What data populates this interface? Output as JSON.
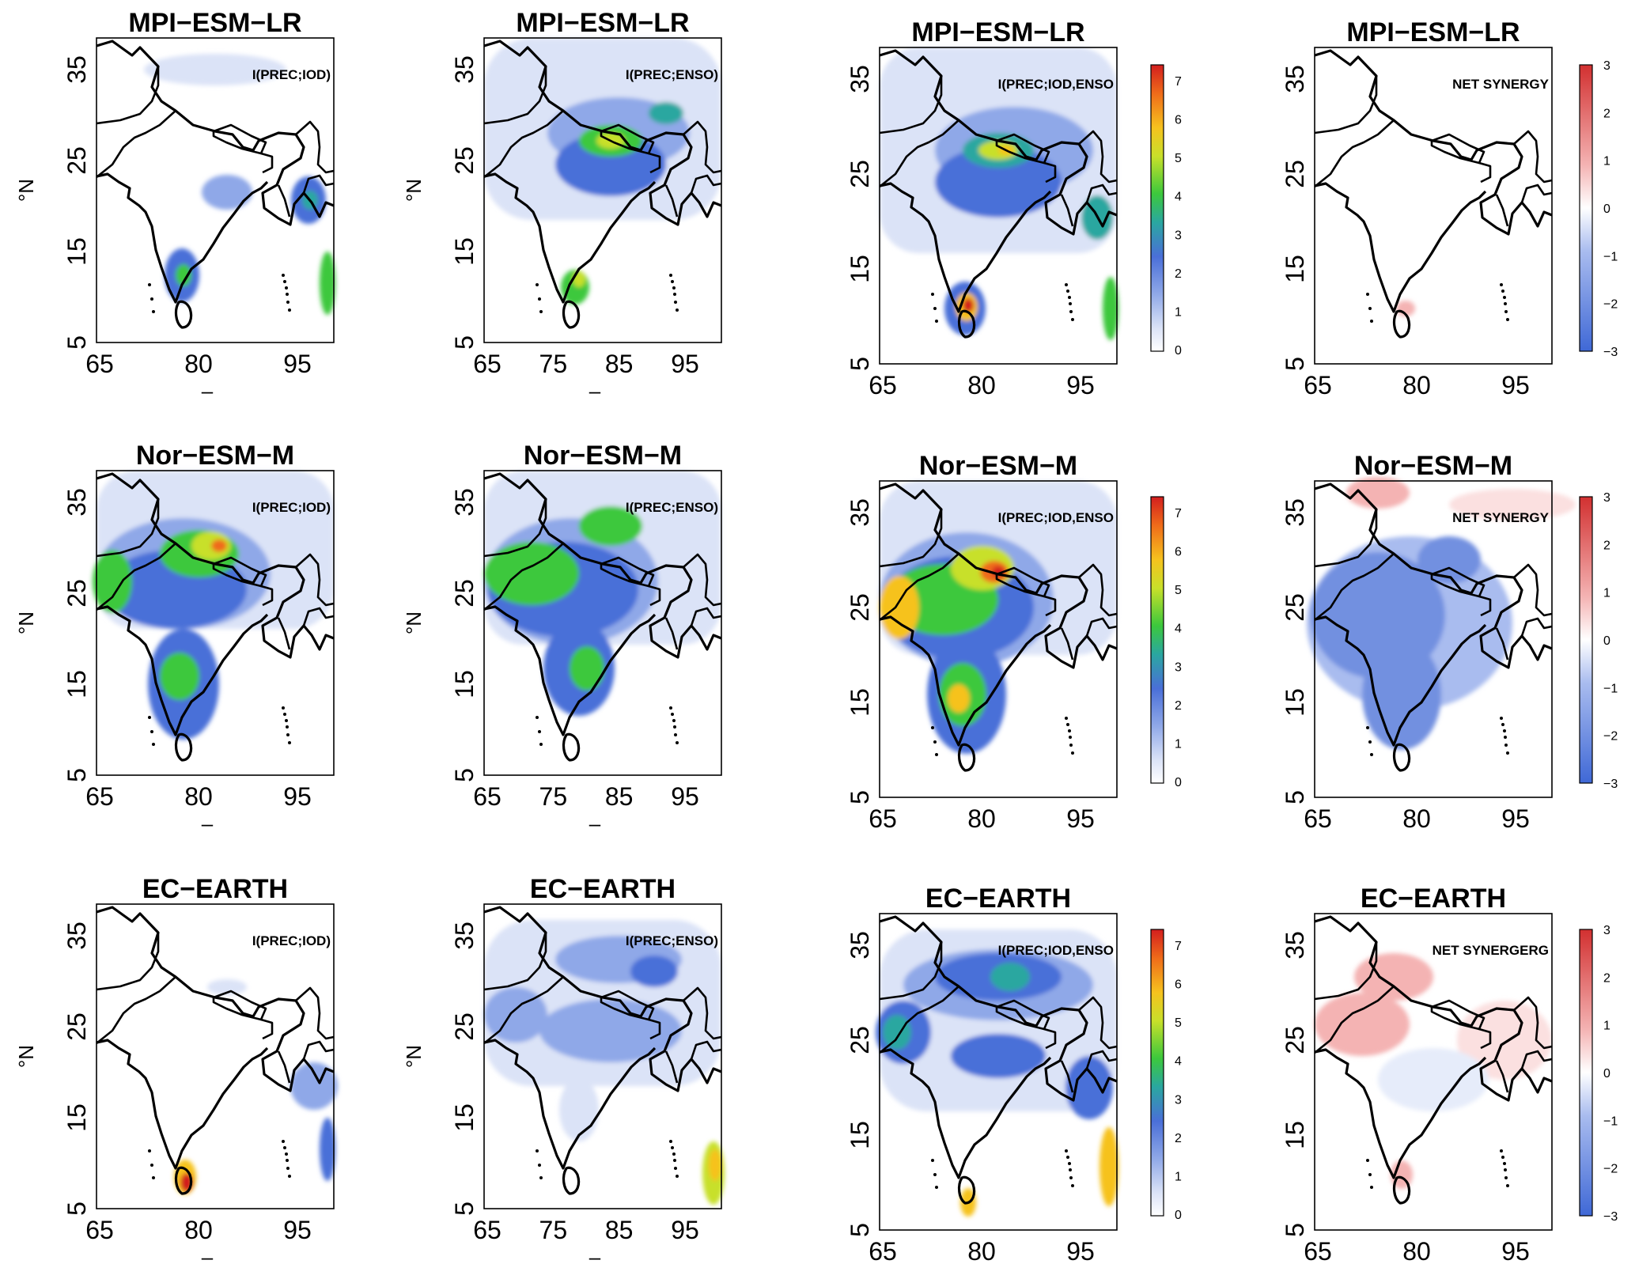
{
  "figure": {
    "panels": [
      {
        "row": 0,
        "col": 0,
        "title": "MPI−ESM−LR",
        "label": "I(PREC;IOD)",
        "xticks": [
          "65",
          "80",
          "95"
        ],
        "yticks": [
          "35",
          "25",
          "15",
          "5"
        ],
        "ylabel": "°N",
        "xlabel": "–"
      },
      {
        "row": 0,
        "col": 1,
        "title": "MPI−ESM−LR",
        "label": "I(PREC;ENSO)",
        "xticks": [
          "65",
          "75",
          "85",
          "95"
        ],
        "yticks": [
          "35",
          "25",
          "15",
          "5"
        ],
        "ylabel": "°N",
        "xlabel": "–"
      },
      {
        "row": 0,
        "col": 2,
        "title": "MPI−ESM−LR",
        "label": "I(PREC;IOD,ENSO",
        "xticks": [
          "65",
          "80",
          "95"
        ],
        "yticks": [
          "35",
          "25",
          "15",
          "5"
        ],
        "ylabel": "",
        "xlabel": ""
      },
      {
        "row": 0,
        "col": 3,
        "title": "MPI−ESM−LR",
        "label": "NET SYNERGY",
        "xticks": [
          "65",
          "80",
          "95"
        ],
        "yticks": [
          "35",
          "25",
          "15",
          "5"
        ],
        "ylabel": "",
        "xlabel": ""
      },
      {
        "row": 1,
        "col": 0,
        "title": "Nor−ESM−M",
        "label": "I(PREC;IOD)",
        "xticks": [
          "65",
          "80",
          "95"
        ],
        "yticks": [
          "35",
          "25",
          "15",
          "5"
        ],
        "ylabel": "°N",
        "xlabel": "–"
      },
      {
        "row": 1,
        "col": 1,
        "title": "Nor−ESM−M",
        "label": "I(PREC;ENSO)",
        "xticks": [
          "65",
          "75",
          "85",
          "95"
        ],
        "yticks": [
          "35",
          "25",
          "15",
          "5"
        ],
        "ylabel": "°N",
        "xlabel": "–"
      },
      {
        "row": 1,
        "col": 2,
        "title": "Nor−ESM−M",
        "label": "I(PREC;IOD,ENSO",
        "xticks": [
          "65",
          "80",
          "95"
        ],
        "yticks": [
          "35",
          "25",
          "15",
          "5"
        ],
        "ylabel": "",
        "xlabel": ""
      },
      {
        "row": 1,
        "col": 3,
        "title": "Nor−ESM−M",
        "label": "NET SYNERGY",
        "xticks": [
          "65",
          "80",
          "95"
        ],
        "yticks": [
          "35",
          "25",
          "15",
          "5"
        ],
        "ylabel": "",
        "xlabel": ""
      },
      {
        "row": 2,
        "col": 0,
        "title": "EC−EARTH",
        "label": "I(PREC;IOD)",
        "xticks": [
          "65",
          "80",
          "95"
        ],
        "yticks": [
          "35",
          "25",
          "15",
          "5"
        ],
        "ylabel": "°N",
        "xlabel": "–"
      },
      {
        "row": 2,
        "col": 1,
        "title": "EC−EARTH",
        "label": "I(PREC;ENSO)",
        "xticks": [
          "65",
          "75",
          "85",
          "95"
        ],
        "yticks": [
          "35",
          "25",
          "15",
          "5"
        ],
        "ylabel": "°N",
        "xlabel": "–"
      },
      {
        "row": 2,
        "col": 2,
        "title": "EC−EARTH",
        "label": "I(PREC;IOD,ENSO",
        "xticks": [
          "65",
          "80",
          "95"
        ],
        "yticks": [
          "35",
          "25",
          "15",
          "5"
        ],
        "ylabel": "",
        "xlabel": ""
      },
      {
        "row": 2,
        "col": 3,
        "title": "EC−EARTH",
        "label": "NET SYNERGERG",
        "xticks": [
          "65",
          "80",
          "95"
        ],
        "yticks": [
          "35",
          "25",
          "15",
          "5"
        ],
        "ylabel": "",
        "xlabel": ""
      }
    ],
    "colorbars": {
      "information": {
        "ticks": [
          "7",
          "6",
          "5",
          "4",
          "3",
          "2",
          "1",
          "0"
        ],
        "colors": [
          "#ffffff",
          "#dbe3f7",
          "#8fa8e8",
          "#4a6fd8",
          "#2aa7a0",
          "#3cc83c",
          "#c8e02a",
          "#f6c21e",
          "#ef6b1a",
          "#d21e1e"
        ]
      },
      "synergy": {
        "ticks": [
          "3",
          "2",
          "1",
          "0",
          "−1",
          "−2",
          "−3"
        ],
        "colors": [
          "#3f68d6",
          "#a9bcef",
          "#ffffff",
          "#f4b3b3",
          "#d23030"
        ]
      }
    }
  }
}
